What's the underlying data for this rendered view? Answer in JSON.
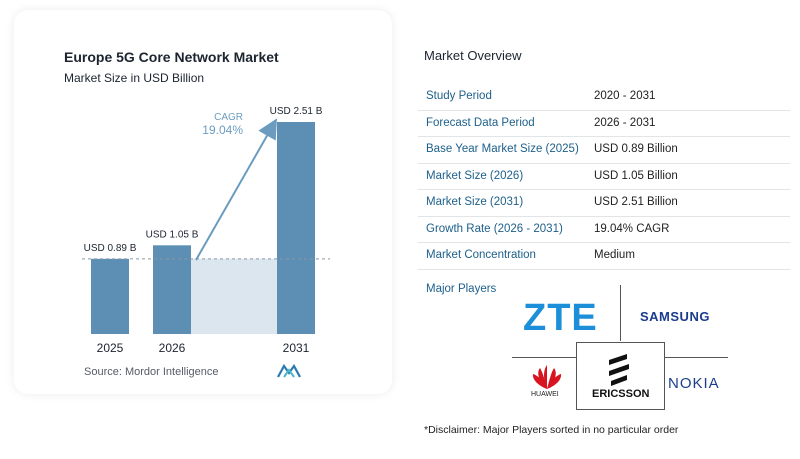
{
  "chart_data": {
    "type": "bar",
    "title": "Europe 5G Core Network Market",
    "subtitle": "Market Size in USD Billion",
    "categories": [
      "2025",
      "2026",
      "2031"
    ],
    "values": [
      0.89,
      1.05,
      2.51
    ],
    "value_labels": [
      "USD 0.89 B",
      "USD 1.05 B",
      "USD 2.51 B"
    ],
    "cagr_label": "CAGR",
    "cagr_value": "19.04%",
    "ylim": [
      0,
      2.51
    ],
    "grid": false,
    "colors": {
      "bar": "#5c8fb3",
      "bar_top": "#4a7ea4",
      "shade": "#dce6ef",
      "arrow": "#6b9cbf",
      "cagr_text": "#6b9cbf"
    }
  },
  "source": "Source:  Mordor Intelligence",
  "overview": {
    "title": "Market Overview",
    "rows": [
      {
        "label": "Study Period",
        "value": "2020 - 2031"
      },
      {
        "label": "Forecast Data Period",
        "value": "2026 - 2031"
      },
      {
        "label": "Base Year Market Size (2025)",
        "value": "USD 0.89 Billion"
      },
      {
        "label": "Market Size (2026)",
        "value": "USD 1.05 Billion"
      },
      {
        "label": "Market Size (2031)",
        "value": "USD 2.51 Billion"
      },
      {
        "label": "Growth Rate (2026 - 2031)",
        "value": "19.04% CAGR"
      },
      {
        "label": "Market Concentration",
        "value": "Medium"
      }
    ]
  },
  "players": {
    "title": "Major Players",
    "logos": {
      "zte": "ZTE",
      "samsung": "SAMSUNG",
      "huawei": "HUAWEI",
      "ericsson": "ERICSSON",
      "nokia": "NOKIA"
    }
  },
  "disclaimer": "*Disclaimer: Major Players sorted in no particular order"
}
